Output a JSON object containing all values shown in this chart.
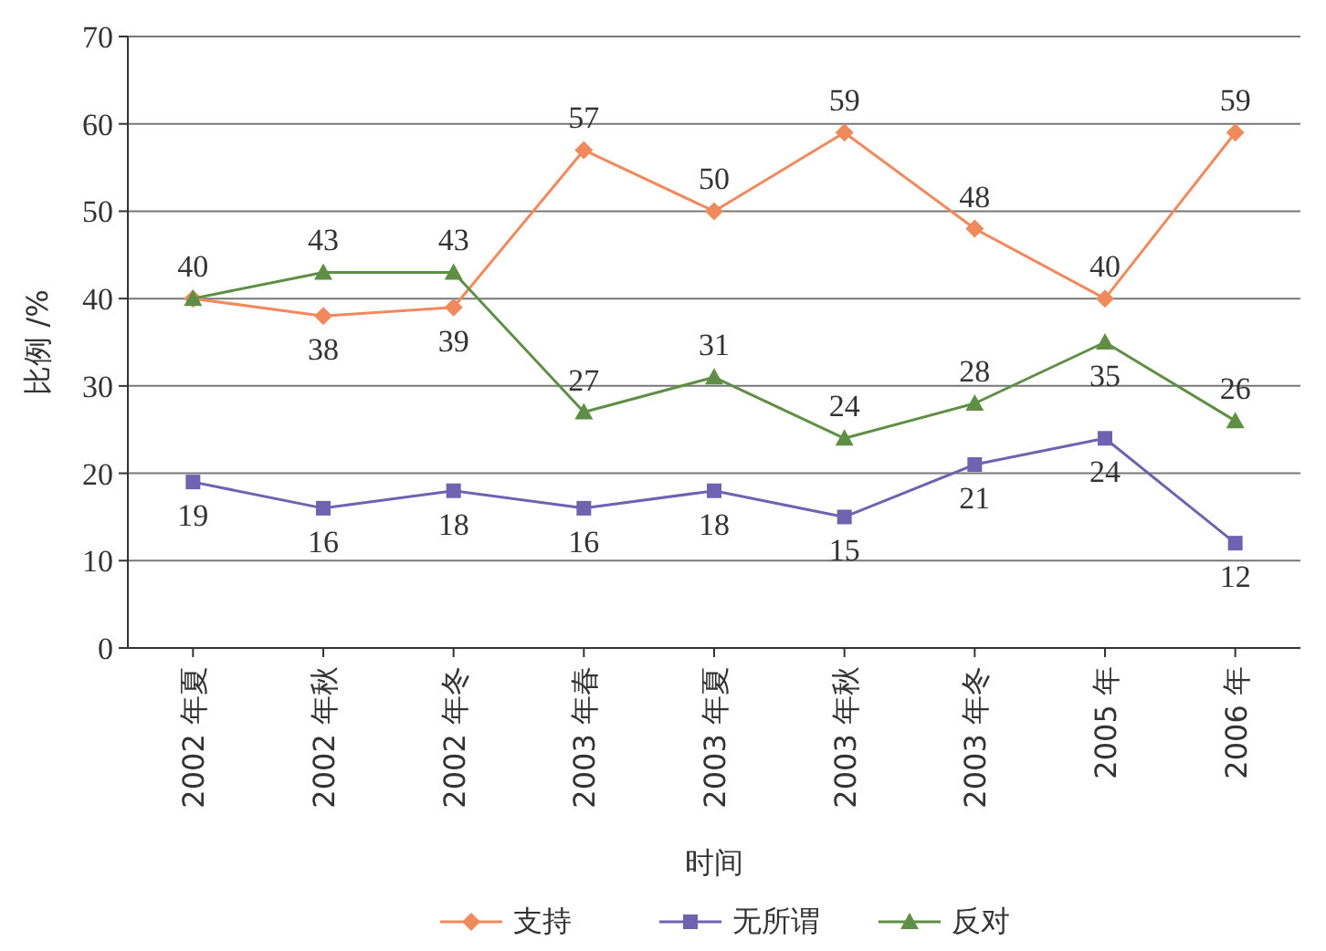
{
  "chart_data": {
    "type": "line",
    "xlabel": "时间",
    "ylabel": "比例 /%",
    "categories": [
      "2002 年夏",
      "2002 年秋",
      "2002 年冬",
      "2003 年春",
      "2003 年夏",
      "2003 年秋",
      "2003 年冬",
      "2005 年",
      "2006 年"
    ],
    "series": [
      {
        "name": "支持",
        "color": "#f08a5d",
        "marker": "diamond",
        "values": [
          40,
          38,
          39,
          57,
          50,
          59,
          48,
          40,
          59
        ],
        "value_labels": [
          "40",
          "38",
          "39",
          "57",
          "50",
          "59",
          "48",
          "40",
          "59"
        ]
      },
      {
        "name": "无所谓",
        "color": "#6f62b0",
        "marker": "square",
        "values": [
          19,
          16,
          18,
          16,
          18,
          15,
          21,
          24,
          12
        ],
        "value_labels": [
          "19",
          "16",
          "18",
          "16",
          "18",
          "15",
          "21",
          "24",
          "12"
        ]
      },
      {
        "name": "反对",
        "color": "#5f8f45",
        "marker": "triangle",
        "values": [
          40,
          43,
          43,
          27,
          31,
          24,
          28,
          35,
          26
        ],
        "value_labels": [
          null,
          "43",
          "43",
          "27",
          "31",
          "24",
          "28",
          "35",
          "26"
        ]
      }
    ],
    "ylim": [
      0,
      70
    ],
    "yticks": [
      0,
      10,
      20,
      30,
      40,
      50,
      60,
      70
    ],
    "grid": "y",
    "legend": "bottom"
  }
}
